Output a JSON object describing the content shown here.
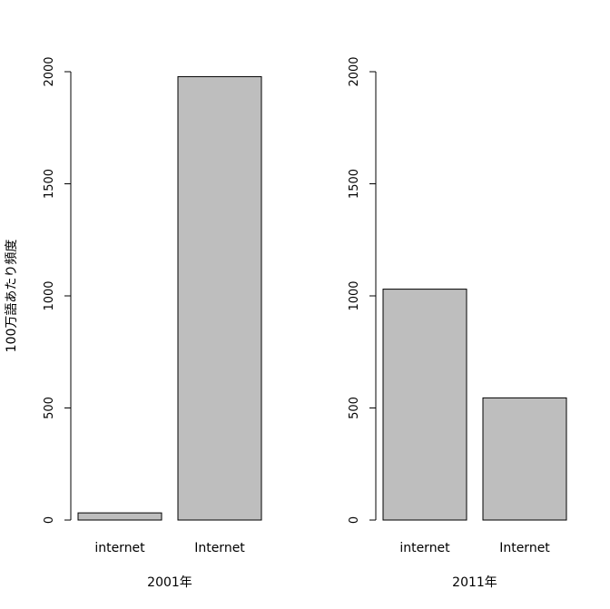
{
  "chart_data": [
    {
      "type": "bar",
      "categories": [
        "internet",
        "Internet"
      ],
      "values": [
        32,
        1978
      ],
      "xlabel": "2001年",
      "ylabel": "100万語あたり頻度",
      "ylim": [
        0,
        2000
      ],
      "yticks": [
        0,
        500,
        1000,
        1500,
        2000
      ],
      "bar_color": "#bebebe",
      "grid": false
    },
    {
      "type": "bar",
      "categories": [
        "internet",
        "Internet"
      ],
      "values": [
        1030,
        545
      ],
      "xlabel": "2011年",
      "ylabel": "",
      "ylim": [
        0,
        2000
      ],
      "yticks": [
        0,
        500,
        1000,
        1500,
        2000
      ],
      "bar_color": "#bebebe",
      "grid": false
    }
  ]
}
